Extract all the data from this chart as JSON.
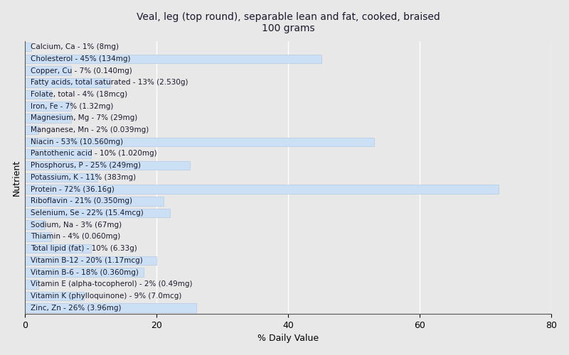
{
  "title": "Veal, leg (top round), separable lean and fat, cooked, braised\n100 grams",
  "xlabel": "% Daily Value",
  "ylabel": "Nutrient",
  "nutrients": [
    {
      "label": "Calcium, Ca - 1% (8mg)",
      "value": 1
    },
    {
      "label": "Cholesterol - 45% (134mg)",
      "value": 45
    },
    {
      "label": "Copper, Cu - 7% (0.140mg)",
      "value": 7
    },
    {
      "label": "Fatty acids, total saturated - 13% (2.530g)",
      "value": 13
    },
    {
      "label": "Folate, total - 4% (18mcg)",
      "value": 4
    },
    {
      "label": "Iron, Fe - 7% (1.32mg)",
      "value": 7
    },
    {
      "label": "Magnesium, Mg - 7% (29mg)",
      "value": 7
    },
    {
      "label": "Manganese, Mn - 2% (0.039mg)",
      "value": 2
    },
    {
      "label": "Niacin - 53% (10.560mg)",
      "value": 53
    },
    {
      "label": "Pantothenic acid - 10% (1.020mg)",
      "value": 10
    },
    {
      "label": "Phosphorus, P - 25% (249mg)",
      "value": 25
    },
    {
      "label": "Potassium, K - 11% (383mg)",
      "value": 11
    },
    {
      "label": "Protein - 72% (36.16g)",
      "value": 72
    },
    {
      "label": "Riboflavin - 21% (0.350mg)",
      "value": 21
    },
    {
      "label": "Selenium, Se - 22% (15.4mcg)",
      "value": 22
    },
    {
      "label": "Sodium, Na - 3% (67mg)",
      "value": 3
    },
    {
      "label": "Thiamin - 4% (0.060mg)",
      "value": 4
    },
    {
      "label": "Total lipid (fat) - 10% (6.33g)",
      "value": 10
    },
    {
      "label": "Vitamin B-12 - 20% (1.17mcg)",
      "value": 20
    },
    {
      "label": "Vitamin B-6 - 18% (0.360mg)",
      "value": 18
    },
    {
      "label": "Vitamin E (alpha-tocopherol) - 2% (0.49mg)",
      "value": 2
    },
    {
      "label": "Vitamin K (phylloquinone) - 9% (7.0mcg)",
      "value": 9
    },
    {
      "label": "Zinc, Zn - 26% (3.96mg)",
      "value": 26
    }
  ],
  "bar_color": "#cce0f5",
  "bar_edge_color": "#aac4e0",
  "background_color": "#e8e8e8",
  "plot_background_color": "#e8e8e8",
  "xlim": [
    0,
    80
  ],
  "xticks": [
    0,
    20,
    40,
    60,
    80
  ],
  "title_fontsize": 10,
  "label_fontsize": 7.5,
  "axis_label_fontsize": 9
}
